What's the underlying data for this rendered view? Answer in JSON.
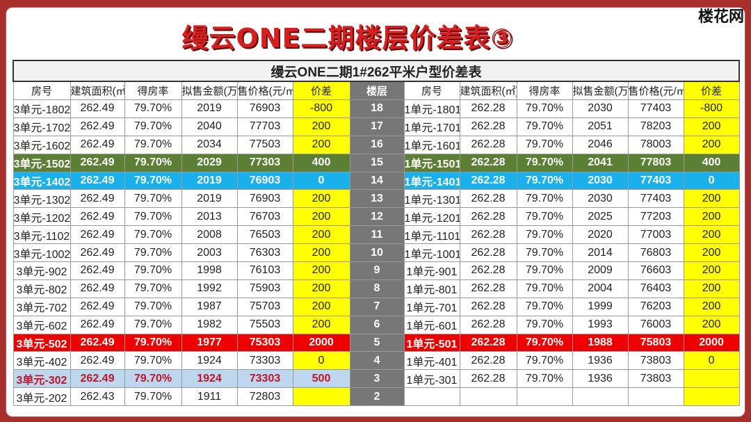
{
  "logo": "楼花网",
  "title": "缦云ONE二期楼层价差表③",
  "table_title": "缦云ONE二期1#262平米户型价差表",
  "headers": [
    "房号",
    "建筑面积(㎡)",
    "得房率",
    "拟售金额(万元)",
    "售价格(元/㎡)",
    "价差",
    "楼层",
    "房号",
    "建筑面积(㎡)",
    "得房率",
    "拟售金额(万元)",
    "售价格(元/㎡)",
    "价差"
  ],
  "rows": [
    {
      "floor": "18",
      "style": "",
      "left": [
        "3单元-1802",
        "262.49",
        "79.70%",
        "2019",
        "76903",
        "-800"
      ],
      "right": [
        "1单元-1801",
        "262.28",
        "79.70%",
        "2030",
        "77403",
        "-800"
      ]
    },
    {
      "floor": "17",
      "style": "",
      "left": [
        "3单元-1702",
        "262.49",
        "79.70%",
        "2040",
        "77703",
        "200"
      ],
      "right": [
        "1单元-1701",
        "262.28",
        "79.70%",
        "2051",
        "78203",
        "200"
      ]
    },
    {
      "floor": "16",
      "style": "",
      "left": [
        "3单元-1602",
        "262.49",
        "79.70%",
        "2034",
        "77503",
        "200"
      ],
      "right": [
        "1单元-1601",
        "262.28",
        "79.70%",
        "2046",
        "78003",
        "200"
      ]
    },
    {
      "floor": "15",
      "style": "g",
      "left": [
        "3单元-1502",
        "262.49",
        "79.70%",
        "2029",
        "77303",
        "400"
      ],
      "right": [
        "1单元-1501",
        "262.28",
        "79.70%",
        "2041",
        "77803",
        "400"
      ]
    },
    {
      "floor": "14",
      "style": "b",
      "left": [
        "3单元-1402",
        "262.49",
        "79.70%",
        "2019",
        "76903",
        "0"
      ],
      "right": [
        "1单元-1401",
        "262.28",
        "79.70%",
        "2030",
        "77403",
        "0"
      ]
    },
    {
      "floor": "13",
      "style": "",
      "left": [
        "3单元-1302",
        "262.49",
        "79.70%",
        "2019",
        "76903",
        "200"
      ],
      "right": [
        "1单元-1301",
        "262.28",
        "79.70%",
        "2030",
        "77403",
        "200"
      ]
    },
    {
      "floor": "12",
      "style": "",
      "left": [
        "3单元-1202",
        "262.49",
        "79.70%",
        "2013",
        "76703",
        "200"
      ],
      "right": [
        "1单元-1201",
        "262.28",
        "79.70%",
        "2025",
        "77203",
        "200"
      ]
    },
    {
      "floor": "11",
      "style": "",
      "left": [
        "3单元-1102",
        "262.49",
        "79.70%",
        "2008",
        "76503",
        "200"
      ],
      "right": [
        "1单元-1101",
        "262.28",
        "79.70%",
        "2020",
        "77003",
        "200"
      ]
    },
    {
      "floor": "10",
      "style": "",
      "left": [
        "3单元-1002",
        "262.49",
        "79.70%",
        "2003",
        "76303",
        "200"
      ],
      "right": [
        "1单元-1001",
        "262.28",
        "79.70%",
        "2014",
        "76803",
        "200"
      ]
    },
    {
      "floor": "9",
      "style": "",
      "left": [
        "3单元-902",
        "262.49",
        "79.70%",
        "1998",
        "76103",
        "200"
      ],
      "right": [
        "1单元-901",
        "262.28",
        "79.70%",
        "2009",
        "76603",
        "200"
      ]
    },
    {
      "floor": "8",
      "style": "",
      "left": [
        "3单元-802",
        "262.49",
        "79.70%",
        "1992",
        "75903",
        "200"
      ],
      "right": [
        "1单元-801",
        "262.28",
        "79.70%",
        "2004",
        "76403",
        "200"
      ]
    },
    {
      "floor": "7",
      "style": "",
      "left": [
        "3单元-702",
        "262.49",
        "79.70%",
        "1987",
        "75703",
        "200"
      ],
      "right": [
        "1单元-701",
        "262.28",
        "79.70%",
        "1999",
        "76203",
        "200"
      ]
    },
    {
      "floor": "6",
      "style": "",
      "left": [
        "3单元-602",
        "262.49",
        "79.70%",
        "1982",
        "75503",
        "200"
      ],
      "right": [
        "1单元-601",
        "262.28",
        "79.70%",
        "1993",
        "76003",
        "200"
      ]
    },
    {
      "floor": "5",
      "style": "r",
      "left": [
        "3单元-502",
        "262.49",
        "79.70%",
        "1977",
        "75303",
        "2000"
      ],
      "right": [
        "1单元-501",
        "262.28",
        "79.70%",
        "1988",
        "75803",
        "2000"
      ]
    },
    {
      "floor": "4",
      "style": "",
      "left": [
        "3单元-402",
        "262.49",
        "79.70%",
        "1924",
        "73303",
        "0"
      ],
      "right": [
        "1单元-401",
        "262.28",
        "79.70%",
        "1936",
        "73803",
        "0"
      ]
    },
    {
      "floor": "3",
      "style": "lb",
      "left": [
        "3单元-302",
        "262.49",
        "79.70%",
        "1924",
        "73303",
        "500"
      ],
      "right": [
        "1单元-301",
        "262.28",
        "79.70%",
        "1936",
        "73803",
        ""
      ]
    },
    {
      "floor": "2",
      "style": "",
      "left": [
        "3单元-202",
        "262.43",
        "79.70%",
        "1911",
        "72803",
        ""
      ],
      "right": [
        "",
        "",
        "",
        "",
        "",
        ""
      ]
    }
  ],
  "colors": {
    "green": "#5b7f34",
    "blue": "#1ab0ec",
    "red": "#ee0000",
    "yellow": "#ffff00",
    "light_blue": "#bdd7ee"
  }
}
